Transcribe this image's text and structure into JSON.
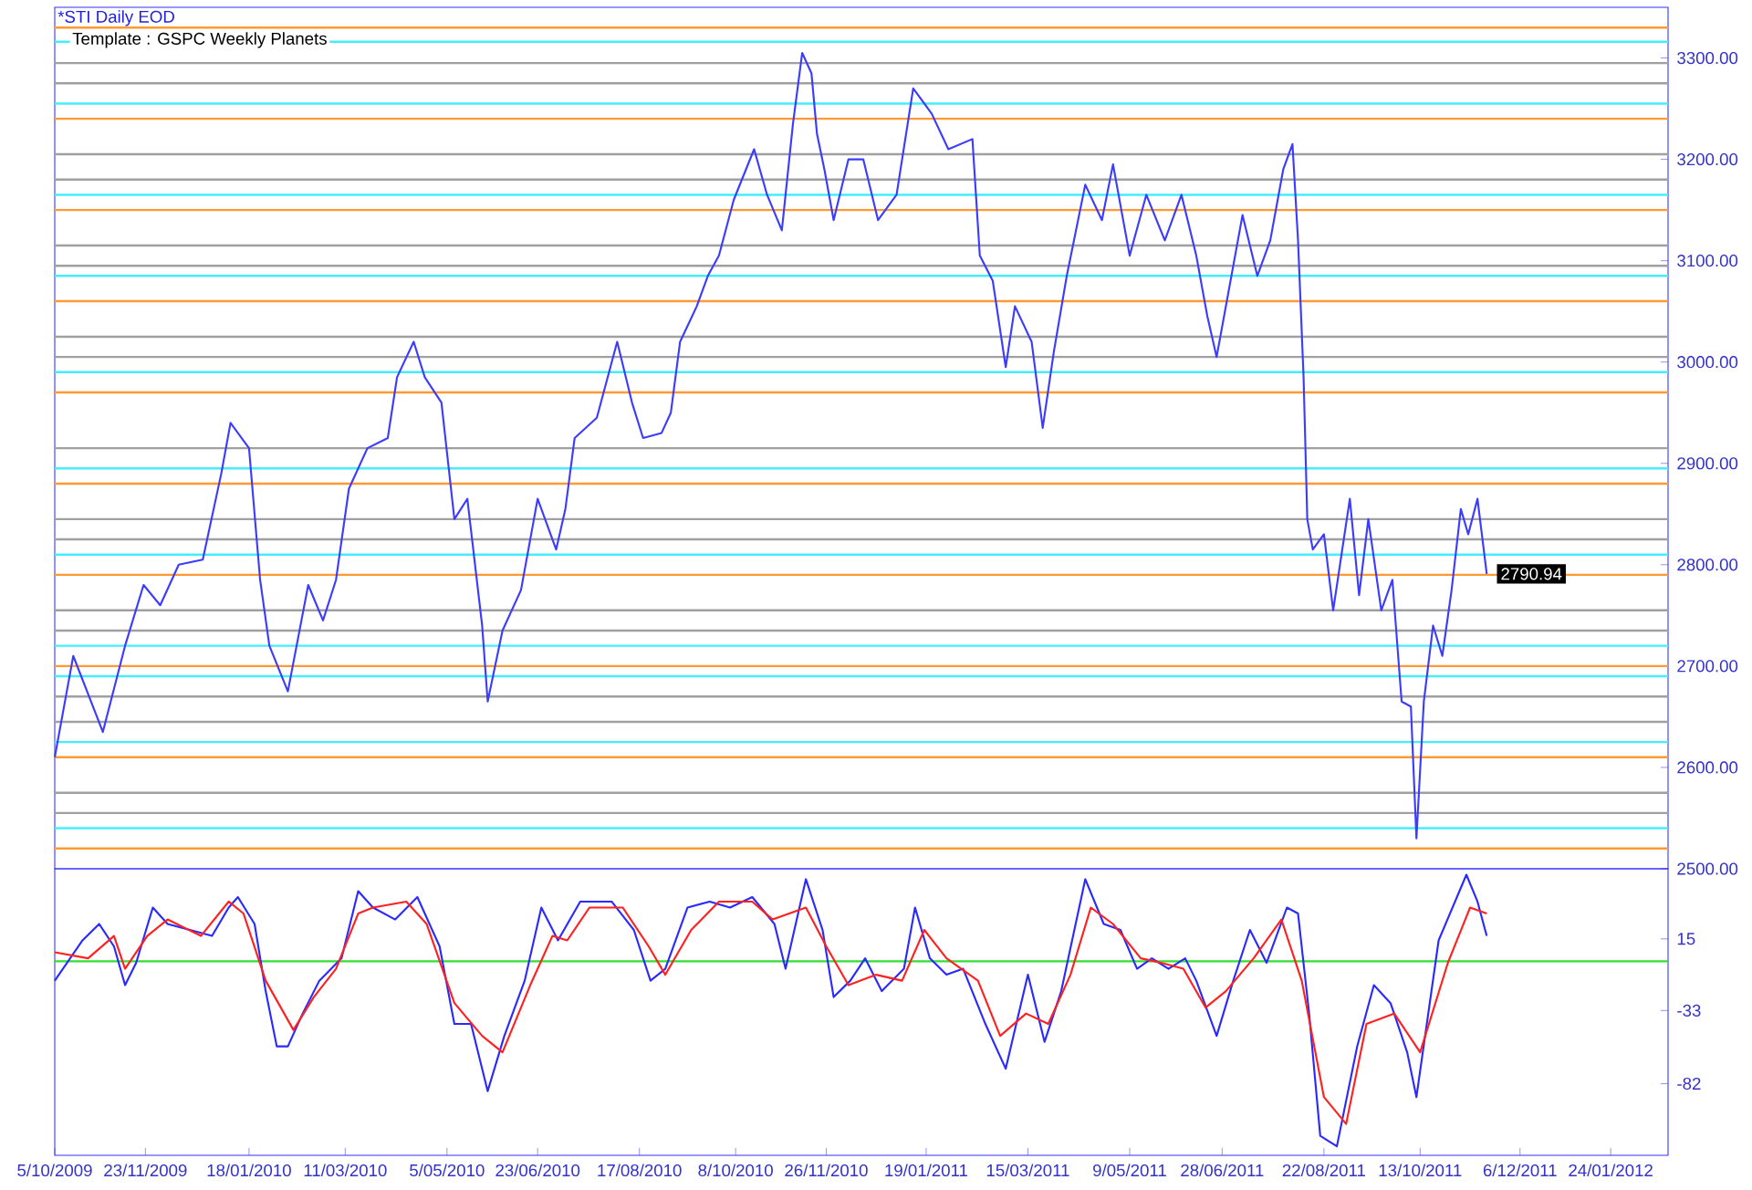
{
  "chart_data": [
    {
      "type": "line",
      "title": "*STI Daily EOD",
      "subtitle": "Template : GSPC Weekly Planets",
      "xlim": [
        "2009-10-05",
        "2012-02-24"
      ],
      "ylim": [
        2500,
        3350
      ],
      "tick_labels": "y",
      "yticks": [
        {
          "value": 2500,
          "label": "2500.00"
        },
        {
          "value": 2600,
          "label": "2600.00"
        },
        {
          "value": 2700,
          "label": "2700.00"
        },
        {
          "value": 2800,
          "label": "2800.00"
        },
        {
          "value": 2900,
          "label": "2900.00"
        },
        {
          "value": 3000,
          "label": "3000.00"
        },
        {
          "value": 3100,
          "label": "3100.00"
        },
        {
          "value": 3200,
          "label": "3200.00"
        },
        {
          "value": 3300,
          "label": "3300.00"
        }
      ],
      "ref_lines": [
        {
          "axis": "y",
          "value": 3330,
          "color": "#ff9933"
        },
        {
          "axis": "y",
          "value": 3240,
          "color": "#ff9933"
        },
        {
          "axis": "y",
          "value": 3150,
          "color": "#ff9933"
        },
        {
          "axis": "y",
          "value": 3060,
          "color": "#ff9933"
        },
        {
          "axis": "y",
          "value": 2970,
          "color": "#ff9933"
        },
        {
          "axis": "y",
          "value": 2880,
          "color": "#ff9933"
        },
        {
          "axis": "y",
          "value": 2790,
          "color": "#ff9933"
        },
        {
          "axis": "y",
          "value": 2700,
          "color": "#ff9933"
        },
        {
          "axis": "y",
          "value": 2610,
          "color": "#ff9933"
        },
        {
          "axis": "y",
          "value": 2520,
          "color": "#ff9933"
        },
        {
          "axis": "y",
          "value": 3295,
          "color": "#a0a0a0"
        },
        {
          "axis": "y",
          "value": 3275,
          "color": "#a0a0a0"
        },
        {
          "axis": "y",
          "value": 3205,
          "color": "#a0a0a0"
        },
        {
          "axis": "y",
          "value": 3180,
          "color": "#a0a0a0"
        },
        {
          "axis": "y",
          "value": 3115,
          "color": "#a0a0a0"
        },
        {
          "axis": "y",
          "value": 3095,
          "color": "#a0a0a0"
        },
        {
          "axis": "y",
          "value": 3025,
          "color": "#a0a0a0"
        },
        {
          "axis": "y",
          "value": 3005,
          "color": "#a0a0a0"
        },
        {
          "axis": "y",
          "value": 2915,
          "color": "#a0a0a0"
        },
        {
          "axis": "y",
          "value": 2845,
          "color": "#a0a0a0"
        },
        {
          "axis": "y",
          "value": 2825,
          "color": "#a0a0a0"
        },
        {
          "axis": "y",
          "value": 2755,
          "color": "#a0a0a0"
        },
        {
          "axis": "y",
          "value": 2735,
          "color": "#a0a0a0"
        },
        {
          "axis": "y",
          "value": 2670,
          "color": "#a0a0a0"
        },
        {
          "axis": "y",
          "value": 2645,
          "color": "#a0a0a0"
        },
        {
          "axis": "y",
          "value": 2575,
          "color": "#a0a0a0"
        },
        {
          "axis": "y",
          "value": 2555,
          "color": "#a0a0a0"
        },
        {
          "axis": "y",
          "value": 3316,
          "color": "#44eeff"
        },
        {
          "axis": "y",
          "value": 3255,
          "color": "#44eeff"
        },
        {
          "axis": "y",
          "value": 3165,
          "color": "#44eeff"
        },
        {
          "axis": "y",
          "value": 3085,
          "color": "#44eeff"
        },
        {
          "axis": "y",
          "value": 2990,
          "color": "#44eeff"
        },
        {
          "axis": "y",
          "value": 2895,
          "color": "#44eeff"
        },
        {
          "axis": "y",
          "value": 2810,
          "color": "#44eeff"
        },
        {
          "axis": "y",
          "value": 2720,
          "color": "#44eeff"
        },
        {
          "axis": "y",
          "value": 2690,
          "color": "#44eeff"
        },
        {
          "axis": "y",
          "value": 2625,
          "color": "#44eeff"
        },
        {
          "axis": "y",
          "value": 2540,
          "color": "#44eeff"
        }
      ],
      "series": [
        {
          "color": "#3c3cff",
          "x": [
            "2009-10-05",
            "2009-10-15",
            "2009-10-31",
            "2009-11-12",
            "2009-11-22",
            "2009-12-01",
            "2009-12-11",
            "2009-12-24",
            "2010-01-03",
            "2010-01-08",
            "2010-01-18",
            "2010-01-24",
            "2010-01-29",
            "2010-02-08",
            "2010-02-19",
            "2010-02-27",
            "2010-03-06",
            "2010-03-13",
            "2010-03-23",
            "2010-04-03",
            "2010-04-08",
            "2010-04-17",
            "2010-04-23",
            "2010-05-02",
            "2010-05-09",
            "2010-05-16",
            "2010-05-24",
            "2010-05-27",
            "2010-06-04",
            "2010-06-14",
            "2010-06-23",
            "2010-07-03",
            "2010-07-08",
            "2010-07-13",
            "2010-07-25",
            "2010-08-05",
            "2010-08-13",
            "2010-08-19",
            "2010-08-29",
            "2010-09-03",
            "2010-09-08",
            "2010-09-17",
            "2010-09-23",
            "2010-09-29",
            "2010-10-07",
            "2010-10-18",
            "2010-10-25",
            "2010-11-02",
            "2010-11-08",
            "2010-11-13",
            "2010-11-18",
            "2010-11-21",
            "2010-11-25",
            "2010-11-30",
            "2010-12-08",
            "2010-12-16",
            "2010-12-24",
            "2011-01-03",
            "2011-01-12",
            "2011-01-22",
            "2011-01-31",
            "2011-02-13",
            "2011-02-17",
            "2011-02-24",
            "2011-03-03",
            "2011-03-08",
            "2011-03-17",
            "2011-03-23",
            "2011-03-29",
            "2011-04-05",
            "2011-04-15",
            "2011-04-24",
            "2011-04-30",
            "2011-05-09",
            "2011-05-18",
            "2011-05-28",
            "2011-06-06",
            "2011-06-14",
            "2011-06-20",
            "2011-06-25",
            "2011-07-01",
            "2011-07-09",
            "2011-07-17",
            "2011-07-24",
            "2011-07-31",
            "2011-08-05",
            "2011-08-08",
            "2011-08-11",
            "2011-08-13",
            "2011-08-16",
            "2011-08-22",
            "2011-08-27",
            "2011-09-05",
            "2011-09-10",
            "2011-09-15",
            "2011-09-22",
            "2011-09-28",
            "2011-10-03",
            "2011-10-08",
            "2011-10-11",
            "2011-10-15",
            "2011-10-20",
            "2011-10-25",
            "2011-10-30",
            "2011-11-04",
            "2011-11-08",
            "2011-11-13",
            "2011-11-18"
          ],
          "values": [
            2610,
            2710,
            2635,
            2720,
            2780,
            2760,
            2800,
            2805,
            2890,
            2940,
            2915,
            2785,
            2720,
            2675,
            2780,
            2745,
            2785,
            2875,
            2915,
            2925,
            2985,
            3020,
            2985,
            2960,
            2845,
            2865,
            2740,
            2665,
            2735,
            2775,
            2865,
            2815,
            2855,
            2925,
            2945,
            3020,
            2960,
            2925,
            2930,
            2950,
            3020,
            3055,
            3085,
            3105,
            3160,
            3210,
            3165,
            3130,
            3235,
            3305,
            3285,
            3225,
            3190,
            3140,
            3200,
            3200,
            3140,
            3165,
            3270,
            3245,
            3210,
            3220,
            3105,
            3080,
            2995,
            3055,
            3020,
            2935,
            3010,
            3085,
            3175,
            3140,
            3195,
            3105,
            3165,
            3120,
            3165,
            3105,
            3045,
            3005,
            3065,
            3145,
            3085,
            3120,
            3190,
            3215,
            3120,
            2985,
            2845,
            2815,
            2830,
            2755,
            2865,
            2770,
            2845,
            2755,
            2785,
            2665,
            2660,
            2530,
            2665,
            2740,
            2710,
            2775,
            2855,
            2830,
            2865,
            2790.94
          ]
        }
      ],
      "annotations": [
        {
          "text": "2790.94",
          "x": "2011-11-18",
          "y": 2790.94
        }
      ]
    },
    {
      "type": "line",
      "xlim": [
        "2009-10-05",
        "2012-02-24"
      ],
      "ylim": [
        -130,
        62
      ],
      "yticks": [
        15,
        -33,
        -82
      ],
      "xticks": [
        {
          "value": "2009-10-05",
          "label": "5/10/2009"
        },
        {
          "value": "2009-11-23",
          "label": "23/11/2009"
        },
        {
          "value": "2010-01-18",
          "label": "18/01/2010"
        },
        {
          "value": "2010-03-11",
          "label": "11/03/2010"
        },
        {
          "value": "2010-05-05",
          "label": "5/05/2010"
        },
        {
          "value": "2010-06-23",
          "label": "23/06/2010"
        },
        {
          "value": "2010-08-17",
          "label": "17/08/2010"
        },
        {
          "value": "2010-10-08",
          "label": "8/10/2010"
        },
        {
          "value": "2010-11-26",
          "label": "26/11/2010"
        },
        {
          "value": "2011-01-19",
          "label": "19/01/2011"
        },
        {
          "value": "2011-03-15",
          "label": "15/03/2011"
        },
        {
          "value": "2011-05-09",
          "label": "9/05/2011"
        },
        {
          "value": "2011-06-28",
          "label": "28/06/2011"
        },
        {
          "value": "2011-08-22",
          "label": "22/08/2011"
        },
        {
          "value": "2011-10-13",
          "label": "13/10/2011"
        },
        {
          "value": "2011-12-06",
          "label": "6/12/2011"
        },
        {
          "value": "2012-01-24",
          "label": "24/01/2012"
        }
      ],
      "ref_lines": [
        {
          "axis": "y",
          "value": 0,
          "color": "#33dd33"
        }
      ],
      "series": [
        {
          "color": "#2a2aff",
          "x": [
            "2009-10-05",
            "2009-10-20",
            "2009-10-29",
            "2009-11-06",
            "2009-11-12",
            "2009-11-18",
            "2009-11-27",
            "2009-12-05",
            "2009-12-17",
            "2009-12-29",
            "2010-01-07",
            "2010-01-12",
            "2010-01-21",
            "2010-01-27",
            "2010-02-02",
            "2010-02-08",
            "2010-02-16",
            "2010-02-25",
            "2010-03-09",
            "2010-03-18",
            "2010-03-26",
            "2010-04-07",
            "2010-04-19",
            "2010-05-01",
            "2010-05-09",
            "2010-05-18",
            "2010-05-27",
            "2010-06-05",
            "2010-06-16",
            "2010-06-25",
            "2010-07-04",
            "2010-07-16",
            "2010-08-02",
            "2010-08-14",
            "2010-08-23",
            "2010-08-31",
            "2010-09-12",
            "2010-09-24",
            "2010-10-05",
            "2010-10-17",
            "2010-10-29",
            "2010-11-04",
            "2010-11-15",
            "2010-11-24",
            "2010-11-30",
            "2010-12-09",
            "2010-12-17",
            "2010-12-26",
            "2011-01-07",
            "2011-01-13",
            "2011-01-21",
            "2011-01-30",
            "2011-02-08",
            "2011-02-20",
            "2011-03-03",
            "2011-03-15",
            "2011-03-24",
            "2011-04-02",
            "2011-04-15",
            "2011-04-25",
            "2011-05-04",
            "2011-05-13",
            "2011-05-21",
            "2011-05-30",
            "2011-06-08",
            "2011-06-14",
            "2011-06-25",
            "2011-07-04",
            "2011-07-13",
            "2011-07-22",
            "2011-08-02",
            "2011-08-08",
            "2011-08-14",
            "2011-08-20",
            "2011-08-29",
            "2011-09-09",
            "2011-09-18",
            "2011-09-27",
            "2011-10-06",
            "2011-10-11",
            "2011-10-23",
            "2011-11-07",
            "2011-11-13",
            "2011-11-18"
          ],
          "values": [
            -13,
            14,
            25,
            10,
            -16,
            -1,
            36,
            25,
            21,
            17,
            36,
            43,
            25,
            -20,
            -57,
            -57,
            -35,
            -13,
            2,
            47,
            36,
            28,
            43,
            10,
            -42,
            -42,
            -87,
            -50,
            -13,
            36,
            14,
            40,
            40,
            21,
            -13,
            -5,
            36,
            40,
            36,
            43,
            25,
            -5,
            55,
            21,
            -24,
            -13,
            2,
            -20,
            -5,
            36,
            2,
            -9,
            -5,
            -42,
            -72,
            -9,
            -54,
            -20,
            55,
            25,
            21,
            -5,
            2,
            -5,
            2,
            -13,
            -50,
            -13,
            21,
            -1,
            36,
            32,
            -35,
            -117,
            -124,
            -57,
            -16,
            -28,
            -61,
            -91,
            14,
            58,
            40,
            17
          ]
        },
        {
          "color": "#ff2020",
          "x": [
            "2009-10-05",
            "2009-10-23",
            "2009-11-06",
            "2009-11-12",
            "2009-11-24",
            "2009-12-05",
            "2009-12-23",
            "2010-01-07",
            "2010-01-15",
            "2010-01-27",
            "2010-02-11",
            "2010-02-22",
            "2010-03-06",
            "2010-03-18",
            "2010-03-26",
            "2010-04-13",
            "2010-04-24",
            "2010-05-09",
            "2010-05-24",
            "2010-06-04",
            "2010-06-19",
            "2010-07-01",
            "2010-07-09",
            "2010-07-21",
            "2010-08-08",
            "2010-08-22",
            "2010-08-31",
            "2010-09-14",
            "2010-09-29",
            "2010-10-17",
            "2010-10-28",
            "2010-11-15",
            "2010-11-26",
            "2010-12-08",
            "2010-12-23",
            "2011-01-06",
            "2011-01-18",
            "2011-01-30",
            "2011-02-16",
            "2011-02-28",
            "2011-03-14",
            "2011-03-26",
            "2011-04-07",
            "2011-04-18",
            "2011-04-30",
            "2011-05-15",
            "2011-05-26",
            "2011-06-07",
            "2011-06-19",
            "2011-06-30",
            "2011-07-15",
            "2011-07-30",
            "2011-08-10",
            "2011-08-22",
            "2011-09-03",
            "2011-09-14",
            "2011-09-29",
            "2011-10-13",
            "2011-10-28",
            "2011-11-09",
            "2011-11-18"
          ],
          "values": [
            6,
            2,
            17,
            -5,
            17,
            28,
            17,
            40,
            32,
            -13,
            -46,
            -24,
            -5,
            32,
            36,
            40,
            25,
            -28,
            -50,
            -61,
            -16,
            17,
            14,
            36,
            36,
            10,
            -9,
            21,
            40,
            40,
            28,
            36,
            10,
            -16,
            -9,
            -13,
            21,
            2,
            -13,
            -50,
            -35,
            -42,
            -9,
            36,
            25,
            2,
            -1,
            -5,
            -31,
            -20,
            2,
            28,
            -13,
            -91,
            -109,
            -42,
            -35,
            -61,
            -1,
            36,
            32
          ]
        }
      ]
    }
  ]
}
